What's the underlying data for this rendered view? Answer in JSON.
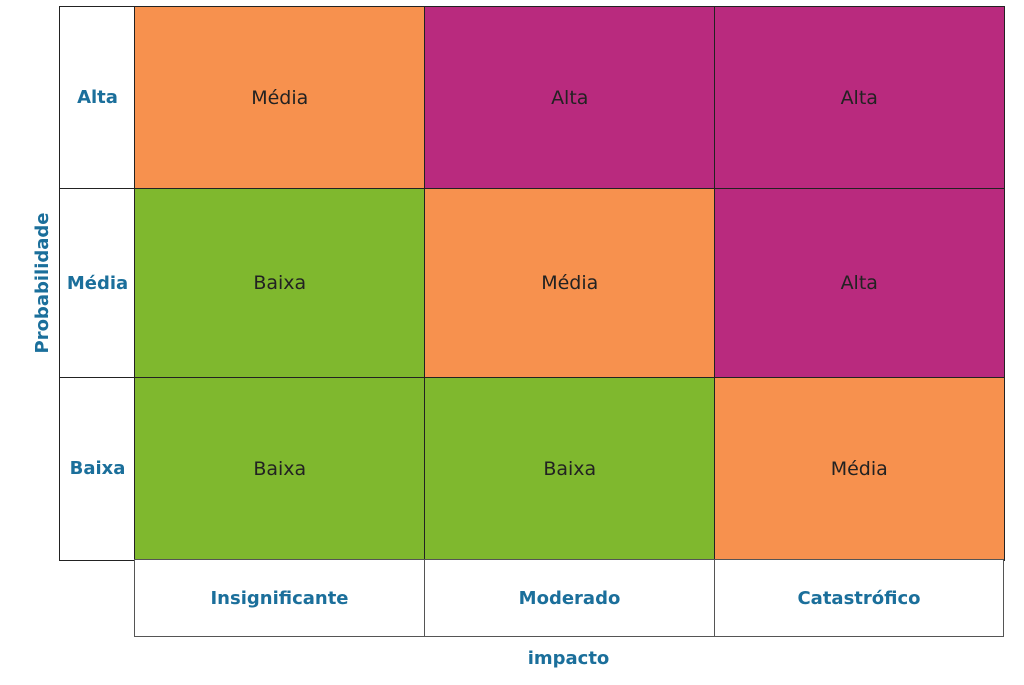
{
  "y_axis": {
    "label": "Probabilidade",
    "levels": [
      "Alta",
      "Média",
      "Baixa"
    ]
  },
  "x_axis": {
    "label": "impacto",
    "levels": [
      "Insignificante",
      "Moderado",
      "Catastrófico"
    ]
  },
  "matrix": [
    [
      "Média",
      "Alta",
      "Alta"
    ],
    [
      "Baixa",
      "Média",
      "Alta"
    ],
    [
      "Baixa",
      "Baixa",
      "Média"
    ]
  ],
  "colors": {
    "Baixa": "#7fb82e",
    "Média": "#f7914e",
    "Alta": "#b92a7e",
    "label_text": "#1b6f9b"
  }
}
